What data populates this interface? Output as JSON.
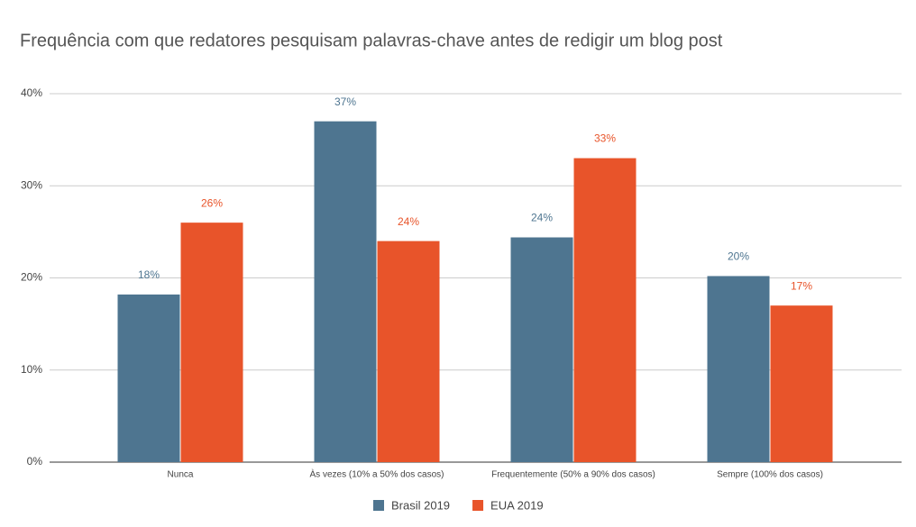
{
  "chart_data": {
    "type": "bar",
    "title": "Frequência com que redatores pesquisam palavras-chave antes de redigir um blog post",
    "categories": [
      "Nunca",
      "Às vezes (10% a 50% dos casos)",
      "Frequentemente (50% a 90% dos casos)",
      "Sempre (100% dos casos)"
    ],
    "series": [
      {
        "name": "Brasil 2019",
        "color": "#4e7590",
        "values": [
          18.2,
          37,
          24.4,
          20.2
        ],
        "value_labels": [
          "18%",
          "37%",
          "24%",
          "20%"
        ]
      },
      {
        "name": "EUA 2019",
        "color": "#e8542a",
        "values": [
          26,
          24,
          33,
          17
        ],
        "value_labels": [
          "26%",
          "24%",
          "33%",
          "17%"
        ]
      }
    ],
    "ylim": [
      0,
      40
    ],
    "yticks": [
      {
        "value": 0,
        "label": "0%"
      },
      {
        "value": 10,
        "label": "10%"
      },
      {
        "value": 20,
        "label": "20%"
      },
      {
        "value": 30,
        "label": "30%"
      },
      {
        "value": 40,
        "label": "40%"
      }
    ],
    "grid": true,
    "legend": "bottom"
  }
}
